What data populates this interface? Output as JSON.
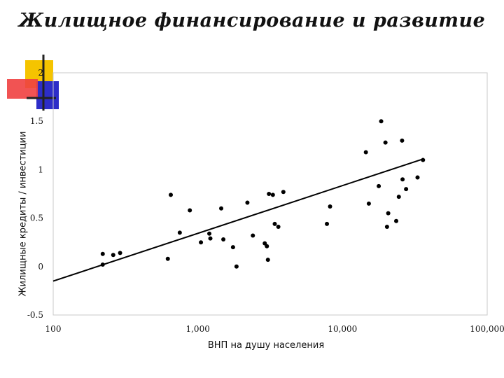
{
  "colors": {
    "accent_yellow": "#f5c400",
    "accent_red": "#f04040",
    "accent_blue": "#2d2dc8",
    "points": "#000000"
  },
  "chart_data": {
    "type": "scatter",
    "title": "Жилищное финансирование и развитие",
    "xlabel": "ВНП на душу населения",
    "ylabel": "Жилищные кредиты / инвестиции",
    "x_scale": "log",
    "xlim": [
      100,
      100000
    ],
    "ylim": [
      -0.5,
      2
    ],
    "x_ticks": [
      "100",
      "1,000",
      "10,000",
      "100,000"
    ],
    "y_ticks": [
      "-0.5",
      "0",
      "0.5",
      "1",
      "1.5",
      "2"
    ],
    "grid": false,
    "points": [
      {
        "x": 220,
        "y": 0.13
      },
      {
        "x": 220,
        "y": 0.02
      },
      {
        "x": 260,
        "y": 0.12
      },
      {
        "x": 290,
        "y": 0.14
      },
      {
        "x": 620,
        "y": 0.08
      },
      {
        "x": 650,
        "y": 0.74
      },
      {
        "x": 750,
        "y": 0.35
      },
      {
        "x": 880,
        "y": 0.58
      },
      {
        "x": 1050,
        "y": 0.25
      },
      {
        "x": 1200,
        "y": 0.34
      },
      {
        "x": 1220,
        "y": 0.29
      },
      {
        "x": 1450,
        "y": 0.6
      },
      {
        "x": 1500,
        "y": 0.28
      },
      {
        "x": 1750,
        "y": 0.2
      },
      {
        "x": 1850,
        "y": 0.0
      },
      {
        "x": 2200,
        "y": 0.66
      },
      {
        "x": 2400,
        "y": 0.32
      },
      {
        "x": 2900,
        "y": 0.24
      },
      {
        "x": 3000,
        "y": 0.21
      },
      {
        "x": 3050,
        "y": 0.07
      },
      {
        "x": 3100,
        "y": 0.75
      },
      {
        "x": 3300,
        "y": 0.74
      },
      {
        "x": 3400,
        "y": 0.44
      },
      {
        "x": 3600,
        "y": 0.41
      },
      {
        "x": 3900,
        "y": 0.77
      },
      {
        "x": 7800,
        "y": 0.44
      },
      {
        "x": 8200,
        "y": 0.62
      },
      {
        "x": 14500,
        "y": 1.18
      },
      {
        "x": 15200,
        "y": 0.65
      },
      {
        "x": 17800,
        "y": 0.83
      },
      {
        "x": 18500,
        "y": 1.5
      },
      {
        "x": 19800,
        "y": 1.28
      },
      {
        "x": 20300,
        "y": 0.41
      },
      {
        "x": 20700,
        "y": 0.55
      },
      {
        "x": 23500,
        "y": 0.47
      },
      {
        "x": 24500,
        "y": 0.72
      },
      {
        "x": 25800,
        "y": 1.3
      },
      {
        "x": 26000,
        "y": 0.9
      },
      {
        "x": 27500,
        "y": 0.8
      },
      {
        "x": 33000,
        "y": 0.92
      },
      {
        "x": 36000,
        "y": 1.1
      }
    ],
    "trendline": {
      "x": [
        100,
        36000
      ],
      "y": [
        -0.15,
        1.11
      ]
    }
  }
}
